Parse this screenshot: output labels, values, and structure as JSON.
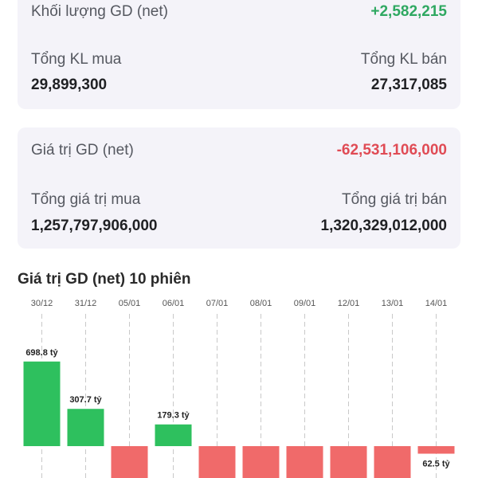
{
  "volume": {
    "net_label": "Khối lượng GD (net)",
    "net_value": "+2,582,215",
    "buy_label": "Tổng KL mua",
    "buy_value": "29,899,300",
    "sell_label": "Tổng KL bán",
    "sell_value": "27,317,085"
  },
  "value": {
    "net_label": "Giá trị GD (net)",
    "net_value": "-62,531,106,000",
    "buy_label": "Tổng giá trị mua",
    "buy_value": "1,257,797,906,000",
    "sell_label": "Tổng giá trị bán",
    "sell_value": "1,320,329,012,000"
  },
  "chart": {
    "title": "Giá trị GD (net) 10 phiên"
  },
  "colors": {
    "positive": "#2ec05e",
    "negative": "#f06a6a",
    "positive_text": "#2ea861",
    "negative_text": "#e04b55"
  },
  "chart_data": {
    "type": "bar",
    "categories": [
      "30/12",
      "31/12",
      "05/01",
      "06/01",
      "07/01",
      "08/01",
      "09/01",
      "12/01",
      "13/01",
      "14/01"
    ],
    "values": [
      698.8,
      307.7,
      null,
      179.3,
      null,
      null,
      null,
      null,
      null,
      -62.5
    ],
    "labels": [
      "698.8 tỷ",
      "307.7 tỷ",
      "",
      "179.3 tỷ",
      "",
      "",
      "",
      "",
      "",
      "62.5 tỷ"
    ],
    "unit": "tỷ",
    "grid": "vertical dashed lines per category"
  }
}
